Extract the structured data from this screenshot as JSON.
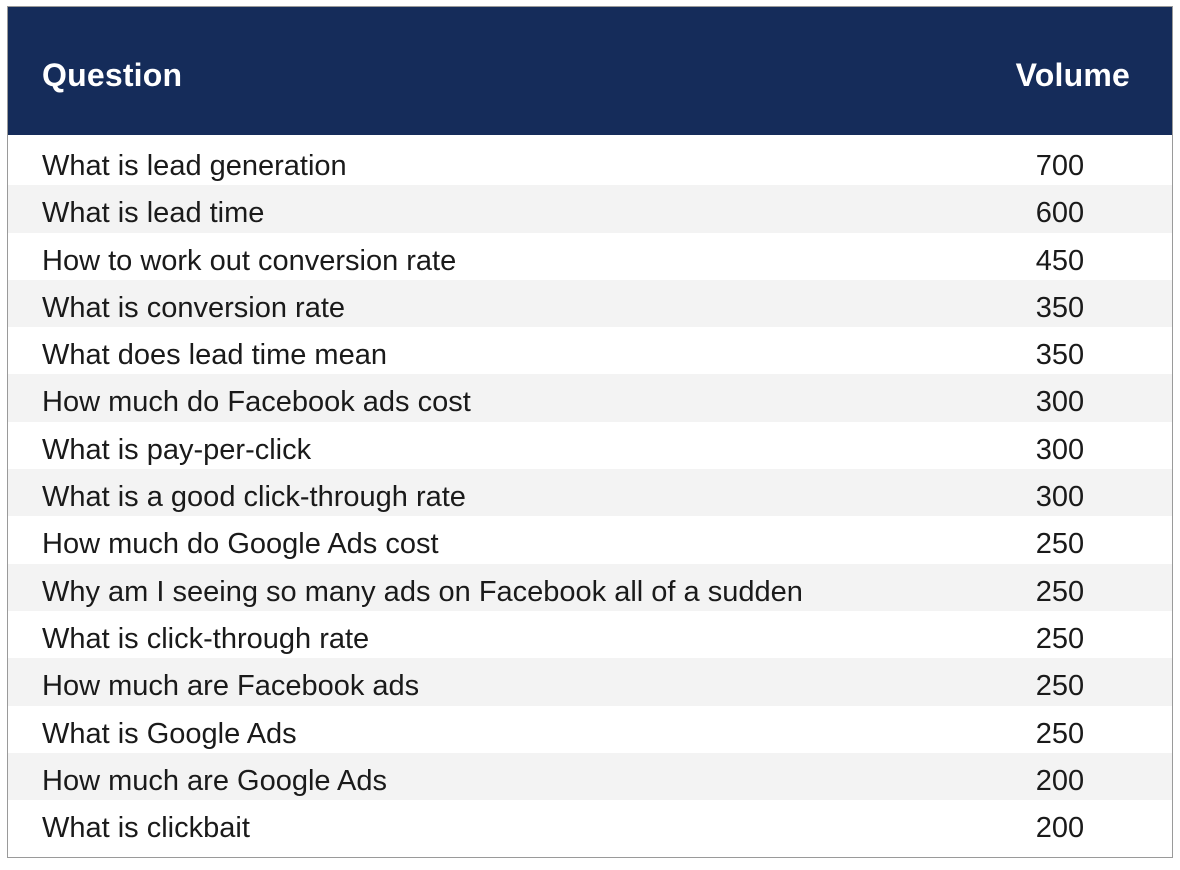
{
  "chart_data": {
    "type": "table",
    "columns": [
      "Question",
      "Volume"
    ],
    "rows": [
      {
        "question": "What is lead generation",
        "volume": "700"
      },
      {
        "question": "What is lead time",
        "volume": "600"
      },
      {
        "question": "How to work out conversion rate",
        "volume": "450"
      },
      {
        "question": "What is conversion rate",
        "volume": "350"
      },
      {
        "question": "What does lead time mean",
        "volume": "350"
      },
      {
        "question": "How much do Facebook ads cost",
        "volume": "300"
      },
      {
        "question": "What is pay-per-click",
        "volume": "300"
      },
      {
        "question": "What is a good click-through rate",
        "volume": "300"
      },
      {
        "question": "How much do Google Ads cost",
        "volume": "250"
      },
      {
        "question": "Why am I seeing so many ads on Facebook all of a sudden",
        "volume": "250"
      },
      {
        "question": "What is click-through rate",
        "volume": "250"
      },
      {
        "question": "How much are Facebook ads",
        "volume": "250"
      },
      {
        "question": "What is Google Ads",
        "volume": "250"
      },
      {
        "question": "How much are Google Ads",
        "volume": "200"
      },
      {
        "question": "What is clickbait",
        "volume": "200"
      }
    ],
    "header_color": "#152c5a",
    "stripe_color": "#f3f3f3"
  }
}
